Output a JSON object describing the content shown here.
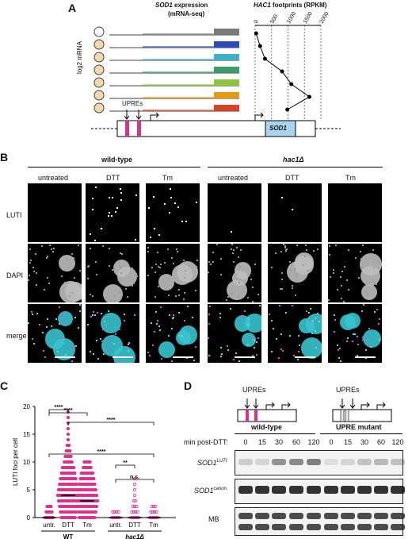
{
  "panels": {
    "a": "A",
    "b": "B",
    "c": "C",
    "d": "D"
  },
  "panel_a": {
    "title_gene": "SOD1",
    "title_rest": " expression",
    "subtitle": "(mRNA-seq)",
    "hac1_gene": "HAC1",
    "hac1_rest": " footprints (RPKM)",
    "ylabel": "log2 mRNA",
    "ticks": [
      "0",
      "500",
      "1000",
      "1500",
      "2000"
    ],
    "track_colors": [
      "#7a7a7a",
      "#2d4bb5",
      "#3fb0c8",
      "#3a9c6a",
      "#8bc43f",
      "#e39c1a",
      "#d6452b"
    ],
    "footprint_values": [
      30,
      150,
      300,
      820,
      1100,
      1650,
      980
    ],
    "upre_label": "UPREs",
    "gene_box_label": "SOD1"
  },
  "panel_b": {
    "wt_label": "wild-type",
    "mut_label": "hac1Δ",
    "conditions": [
      "untreated",
      "DTT",
      "Tm",
      "untreated",
      "DTT",
      "Tm"
    ],
    "rows": [
      "LUTI",
      "DAPI",
      "merge"
    ]
  },
  "chart_data": {
    "type": "scatter",
    "ylabel": "LUTI foci per cell",
    "ylim": [
      0,
      20
    ],
    "yticks": [
      "0",
      "5",
      "10",
      "15",
      "20"
    ],
    "categories": [
      "untr.",
      "DTT",
      "Tm",
      "untr.",
      "DTT",
      "Tm"
    ],
    "group_labels": [
      "WT",
      "hac1Δ"
    ],
    "medians": [
      0,
      4,
      3,
      0,
      0,
      0
    ],
    "significance": [
      "****",
      "****",
      "****",
      "****",
      "**",
      "n.s."
    ]
  },
  "panel_d": {
    "upre_label": "UPREs",
    "wt_label": "wild-type",
    "mut_label": "UPRE mutant",
    "xlabel": "min post-DTT:",
    "timepoints": [
      "0",
      "15",
      "30",
      "60",
      "120",
      "0",
      "15",
      "30",
      "60",
      "120"
    ],
    "blot_sod1_luti": "SOD1",
    "blot_sod1_luti_sup": "LUTI",
    "blot_sod1_canon": "SOD1",
    "blot_sod1_canon_sup": "canon.",
    "blot_mb": "MB"
  }
}
